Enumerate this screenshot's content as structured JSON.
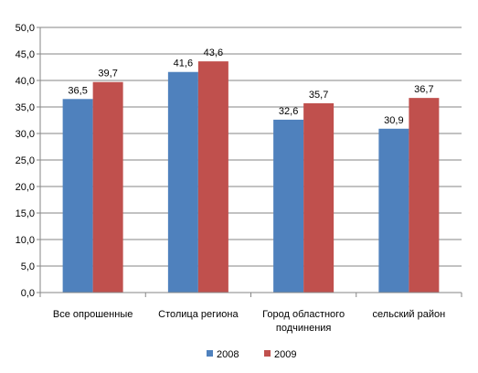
{
  "chart_data": {
    "type": "bar",
    "categories": [
      [
        "Все опрошенные"
      ],
      [
        "Столица региона"
      ],
      [
        "Город областного",
        "подчинения"
      ],
      [
        "сельский район"
      ]
    ],
    "series": [
      {
        "name": "2008",
        "color": "#4F81BD",
        "values": [
          36.5,
          41.6,
          32.6,
          30.9
        ],
        "labels": [
          "36,5",
          "41,6",
          "32,6",
          "30,9"
        ]
      },
      {
        "name": "2009",
        "color": "#C0504D",
        "values": [
          39.7,
          43.6,
          35.7,
          36.7
        ],
        "labels": [
          "39,7",
          "43,6",
          "35,7",
          "36,7"
        ]
      }
    ],
    "yticks": [
      "0,0",
      "5,0",
      "10,0",
      "15,0",
      "20,0",
      "25,0",
      "30,0",
      "35,0",
      "40,0",
      "45,0",
      "50,0"
    ],
    "ylim": [
      0,
      50
    ],
    "grid": true,
    "legend_position": "bottom",
    "title": "",
    "xlabel": "",
    "ylabel": ""
  }
}
